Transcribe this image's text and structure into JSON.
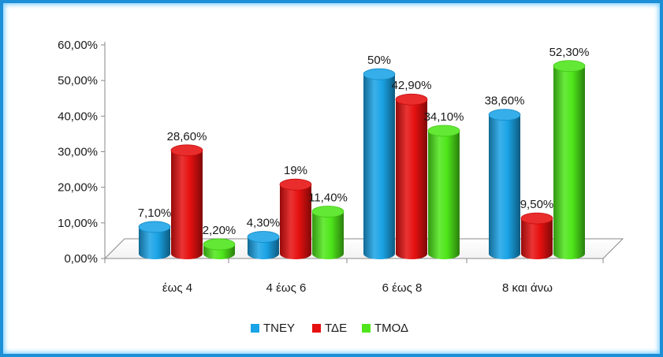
{
  "chart_data": {
    "type": "bar",
    "title": "",
    "xlabel": "",
    "ylabel": "",
    "categories": [
      "έως 4",
      "4 έως 6",
      "6 έως 8",
      "8 και άνω"
    ],
    "y_ticks": [
      "0,00%",
      "10,00%",
      "20,00%",
      "30,00%",
      "40,00%",
      "50,00%",
      "60,00%"
    ],
    "ylim": [
      0,
      60
    ],
    "legend_position": "bottom",
    "series": [
      {
        "name": "ΤΝΕΥ",
        "color": "#1aa3e6",
        "values": [
          7.1,
          4.3,
          50,
          38.6
        ],
        "labels": [
          "7,10%",
          "4,30%",
          "50%",
          "38,60%"
        ]
      },
      {
        "name": "ΤΔΕ",
        "color": "#e61010",
        "values": [
          28.6,
          19,
          42.9,
          9.5
        ],
        "labels": [
          "28,60%",
          "19%",
          "42,90%",
          "9,50%"
        ]
      },
      {
        "name": "ΤΜΟΔ",
        "color": "#4ee61a",
        "values": [
          2.2,
          11.4,
          34.1,
          52.3
        ],
        "labels": [
          "2,20%",
          "11,40%",
          "34,10%",
          "52,30%"
        ]
      }
    ]
  }
}
